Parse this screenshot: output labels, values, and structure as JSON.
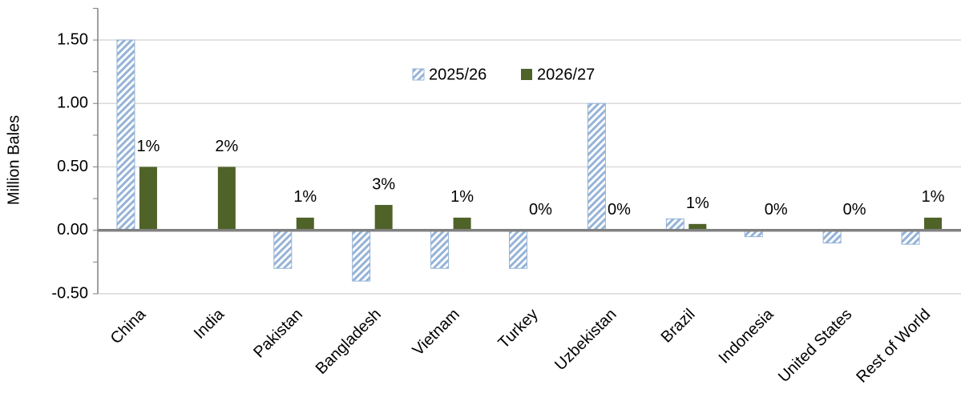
{
  "chart_data": {
    "type": "bar",
    "y_label": "Million Bales",
    "categories": [
      "China",
      "India",
      "Pakistan",
      "Bangladesh",
      "Vietnam",
      "Turkey",
      "Uzbekistan",
      "Brazil",
      "Indonesia",
      "United States",
      "Rest of World"
    ],
    "series": [
      {
        "name": "2025/26",
        "color": "#95b3d7",
        "pattern": "hatch",
        "values": [
          1.5,
          0,
          -0.3,
          -0.4,
          -0.3,
          -0.3,
          1.0,
          0.09,
          -0.05,
          -0.1,
          -0.11
        ]
      },
      {
        "name": "2026/27",
        "color": "#4f6228",
        "pattern": "solid",
        "values": [
          0.5,
          0.5,
          0.1,
          0.2,
          0.1,
          0,
          0,
          0.05,
          0,
          0,
          0.1
        ],
        "annotations": [
          "1%",
          "2%",
          "1%",
          "3%",
          "1%",
          "0%",
          "0%",
          "1%",
          "0%",
          "0%",
          "1%"
        ]
      }
    ],
    "ylim": [
      -0.5,
      1.75
    ],
    "yticks": [
      {
        "value": -0.5,
        "label": "-0.50"
      },
      {
        "value": 0,
        "label": "0.00"
      },
      {
        "value": 0.5,
        "label": "0.50"
      },
      {
        "value": 1,
        "label": "1.00"
      },
      {
        "value": 1.5,
        "label": "1.50"
      }
    ],
    "minor_yticks": [
      -0.25,
      0.25,
      0.75,
      1.25,
      1.75
    ],
    "grid": true
  }
}
